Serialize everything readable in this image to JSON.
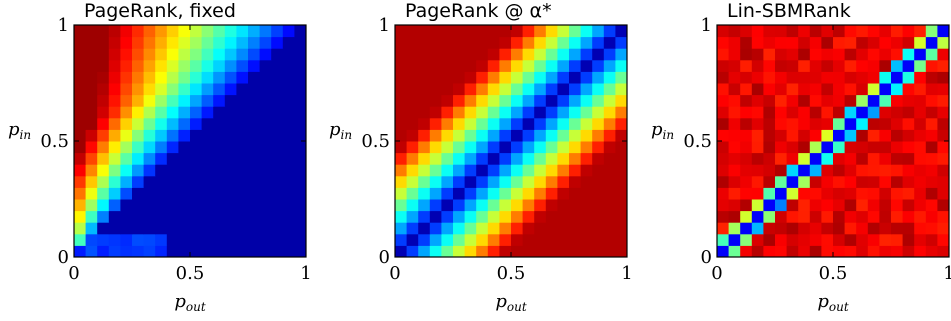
{
  "chart_data": [
    {
      "type": "heatmap",
      "title": "PageRank, fixed",
      "xlabel": "p_out",
      "ylabel": "p_in",
      "x_ticks": [
        "0",
        "0.5",
        "1"
      ],
      "y_ticks": [
        "0",
        "0.5",
        "1"
      ],
      "xlim": [
        0,
        1
      ],
      "ylim": [
        0,
        1
      ],
      "grid_size": 20,
      "colormap": "jet",
      "value_range": [
        0,
        1
      ],
      "pattern": "Value highest near the top-left corner (large p_in, small p_out), decaying toward the diagonal; the region below the diagonal is near zero.",
      "model": "fixed"
    },
    {
      "type": "heatmap",
      "title": "PageRank @ α*",
      "xlabel": "p_out",
      "ylabel": "p_in",
      "x_ticks": [
        "0",
        "0.5",
        "1"
      ],
      "y_ticks": [
        "0",
        "0.5",
        "1"
      ],
      "xlim": [
        0,
        1
      ],
      "ylim": [
        0,
        1
      ],
      "grid_size": 20,
      "colormap": "jet",
      "value_range": [
        0,
        1
      ],
      "pattern": "Low values along the diagonal p_in = p_out, rising toward both the top-left and bottom-right corners.",
      "model": "alpha"
    },
    {
      "type": "heatmap",
      "title": "Lin-SBMRank",
      "xlabel": "p_out",
      "ylabel": "p_in",
      "x_ticks": [
        "0",
        "0.5",
        "1"
      ],
      "y_ticks": [
        "0",
        "0.5",
        "1"
      ],
      "xlim": [
        0,
        1
      ],
      "ylim": [
        0,
        1
      ],
      "grid_size": 20,
      "colormap": "jet",
      "value_range": [
        0,
        1
      ],
      "pattern": "High (red) almost everywhere except a narrow low band along the diagonal p_in = p_out.",
      "model": "lin"
    }
  ],
  "colors": {
    "jet_stops": [
      "#00007f",
      "#0000ff",
      "#00ffff",
      "#ffff00",
      "#ff0000",
      "#7f0000"
    ],
    "axes": "#000000"
  }
}
